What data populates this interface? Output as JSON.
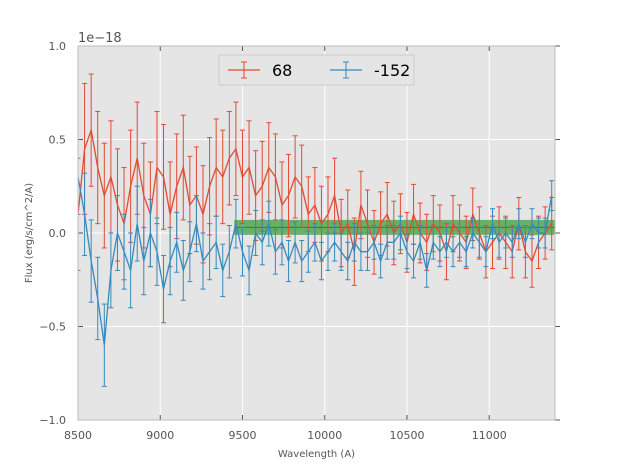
{
  "chart_data": {
    "type": "line",
    "title": "",
    "xlabel": "Wavelength (A)",
    "ylabel": "Flux (erg/s/cm^2/A)",
    "y_offset_label": "1e−18",
    "xlim": [
      8500,
      11400
    ],
    "ylim": [
      -1.0,
      1.0
    ],
    "x_ticks": [
      8500,
      9000,
      9500,
      10000,
      10500,
      11000
    ],
    "x_tick_labels": [
      "8500",
      "9000",
      "9500",
      "10000",
      "10500",
      "11000"
    ],
    "y_ticks": [
      -1.0,
      -0.5,
      0.0,
      0.5,
      1.0
    ],
    "y_tick_labels": [
      "−1.0",
      "−0.5",
      "0.0",
      "0.5",
      "1.0"
    ],
    "grid": true,
    "background": "#e5e5e5",
    "legend": {
      "placement": "top-center",
      "columns": 2
    },
    "band": {
      "x": [
        9450,
        11400
      ],
      "y": [
        -0.01,
        0.07
      ],
      "color": "#3c9f3c",
      "center": 0.03
    },
    "series": [
      {
        "name": "68",
        "color": "#e24a33",
        "x": [
          8500,
          8540,
          8580,
          8620,
          8660,
          8700,
          8740,
          8780,
          8820,
          8860,
          8900,
          8940,
          8980,
          9020,
          9060,
          9100,
          9140,
          9180,
          9220,
          9260,
          9300,
          9340,
          9380,
          9420,
          9460,
          9500,
          9540,
          9580,
          9620,
          9660,
          9700,
          9740,
          9780,
          9820,
          9860,
          9900,
          9940,
          9980,
          10020,
          10060,
          10100,
          10140,
          10180,
          10220,
          10260,
          10300,
          10340,
          10380,
          10420,
          10460,
          10500,
          10540,
          10580,
          10620,
          10660,
          10700,
          10740,
          10780,
          10820,
          10860,
          10900,
          10940,
          10980,
          11020,
          11060,
          11100,
          11140,
          11180,
          11220,
          11260,
          11300,
          11340,
          11380
        ],
        "y": [
          0.1,
          0.45,
          0.55,
          0.35,
          0.2,
          0.3,
          0.15,
          0.05,
          0.25,
          0.4,
          0.2,
          0.1,
          0.35,
          0.3,
          0.1,
          0.25,
          0.35,
          0.15,
          0.2,
          0.1,
          0.25,
          0.35,
          0.3,
          0.4,
          0.45,
          0.3,
          0.35,
          0.2,
          0.25,
          0.35,
          0.3,
          0.15,
          0.2,
          0.3,
          0.25,
          0.1,
          0.15,
          0.05,
          0.1,
          0.2,
          0.0,
          0.05,
          -0.1,
          0.15,
          0.05,
          -0.05,
          0.05,
          0.1,
          0.0,
          0.05,
          -0.05,
          0.1,
          0.0,
          -0.05,
          0.05,
          0.0,
          -0.1,
          0.05,
          0.0,
          -0.05,
          0.1,
          0.0,
          -0.1,
          -0.05,
          0.0,
          -0.05,
          -0.1,
          0.05,
          -0.1,
          -0.15,
          -0.05,
          0.0,
          0.05
        ],
        "yerr": [
          0.3,
          0.35,
          0.3,
          0.3,
          0.28,
          0.3,
          0.3,
          0.3,
          0.3,
          0.3,
          0.28,
          0.28,
          0.3,
          0.28,
          0.28,
          0.28,
          0.28,
          0.26,
          0.26,
          0.26,
          0.26,
          0.26,
          0.25,
          0.25,
          0.25,
          0.25,
          0.25,
          0.24,
          0.24,
          0.24,
          0.23,
          0.23,
          0.22,
          0.22,
          0.22,
          0.2,
          0.2,
          0.2,
          0.2,
          0.2,
          0.18,
          0.18,
          0.18,
          0.18,
          0.18,
          0.17,
          0.17,
          0.17,
          0.17,
          0.16,
          0.16,
          0.16,
          0.16,
          0.15,
          0.15,
          0.15,
          0.15,
          0.15,
          0.15,
          0.14,
          0.14,
          0.14,
          0.14,
          0.14,
          0.14,
          0.14,
          0.14,
          0.14,
          0.14,
          0.14,
          0.14,
          0.14,
          0.14
        ]
      },
      {
        "name": "-152",
        "color": "#348abd",
        "x": [
          8500,
          8540,
          8580,
          8620,
          8660,
          8700,
          8740,
          8780,
          8820,
          8860,
          8900,
          8940,
          8980,
          9020,
          9060,
          9100,
          9140,
          9180,
          9220,
          9260,
          9300,
          9340,
          9380,
          9420,
          9460,
          9500,
          9540,
          9580,
          9620,
          9660,
          9700,
          9740,
          9780,
          9820,
          9860,
          9900,
          9940,
          9980,
          10020,
          10060,
          10100,
          10140,
          10180,
          10220,
          10260,
          10300,
          10340,
          10380,
          10420,
          10460,
          10500,
          10540,
          10580,
          10620,
          10660,
          10700,
          10740,
          10780,
          10820,
          10860,
          10900,
          10940,
          10980,
          11020,
          11060,
          11100,
          11140,
          11180,
          11220,
          11260,
          11300,
          11340,
          11380
        ],
        "y": [
          0.3,
          0.1,
          -0.15,
          -0.35,
          -0.6,
          -0.2,
          0.0,
          -0.1,
          -0.2,
          0.05,
          -0.15,
          0.0,
          -0.1,
          -0.3,
          -0.15,
          -0.05,
          -0.2,
          -0.1,
          0.05,
          -0.15,
          -0.1,
          -0.05,
          -0.2,
          -0.1,
          0.05,
          -0.1,
          -0.2,
          0.0,
          -0.05,
          0.05,
          -0.1,
          -0.05,
          -0.15,
          -0.05,
          -0.15,
          -0.1,
          -0.05,
          -0.15,
          -0.1,
          -0.05,
          -0.1,
          -0.15,
          -0.05,
          -0.1,
          -0.1,
          -0.05,
          -0.15,
          -0.05,
          -0.05,
          0.0,
          -0.1,
          -0.15,
          -0.05,
          -0.2,
          -0.05,
          -0.1,
          -0.05,
          -0.1,
          -0.05,
          -0.1,
          0.0,
          -0.05,
          -0.1,
          0.05,
          -0.05,
          0.0,
          -0.05,
          0.05,
          -0.05,
          0.05,
          0.0,
          0.0,
          0.2
        ],
        "yerr": [
          0.2,
          0.22,
          0.22,
          0.22,
          0.22,
          0.2,
          0.2,
          0.2,
          0.2,
          0.2,
          0.18,
          0.18,
          0.18,
          0.18,
          0.18,
          0.16,
          0.16,
          0.16,
          0.15,
          0.15,
          0.15,
          0.14,
          0.14,
          0.14,
          0.13,
          0.13,
          0.13,
          0.12,
          0.12,
          0.12,
          0.12,
          0.12,
          0.11,
          0.11,
          0.11,
          0.11,
          0.1,
          0.1,
          0.1,
          0.1,
          0.1,
          0.1,
          0.1,
          0.1,
          0.1,
          0.09,
          0.09,
          0.09,
          0.09,
          0.09,
          0.09,
          0.09,
          0.09,
          0.09,
          0.09,
          0.08,
          0.08,
          0.08,
          0.08,
          0.08,
          0.08,
          0.08,
          0.08,
          0.08,
          0.08,
          0.08,
          0.08,
          0.08,
          0.08,
          0.08,
          0.08,
          0.08,
          0.08
        ]
      }
    ]
  }
}
